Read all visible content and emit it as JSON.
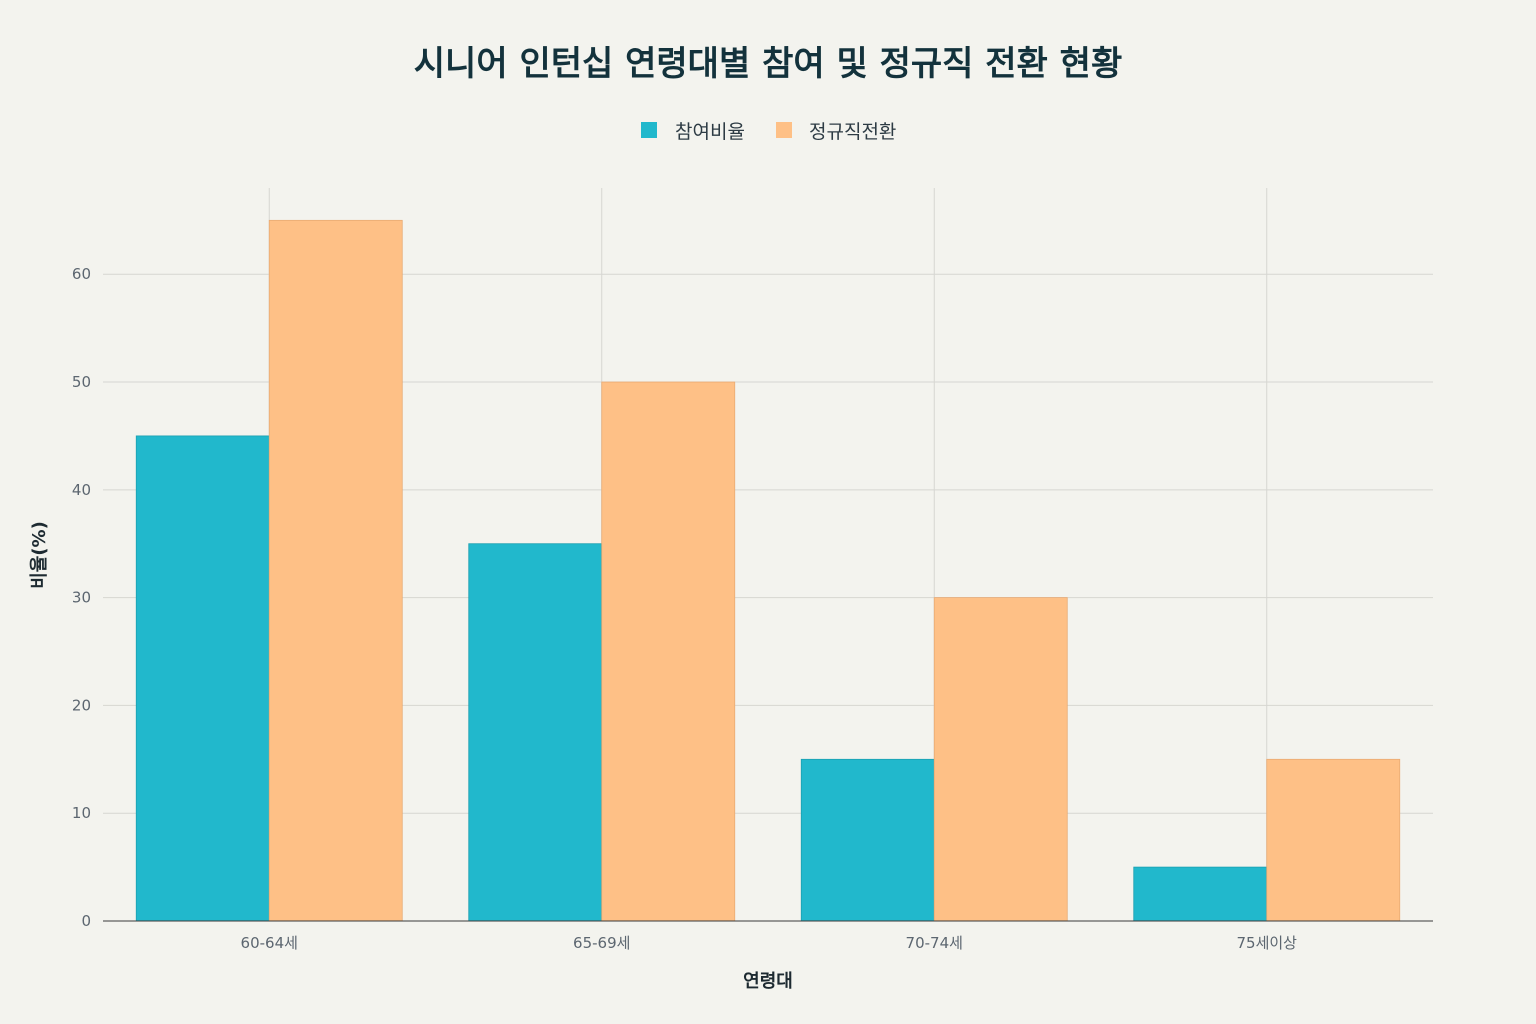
{
  "chart_data": {
    "type": "bar",
    "title": "시니어 인턴십 연령대별 참여 및 정규직 전환 현황",
    "xlabel": "연령대",
    "ylabel": "비율(%)",
    "categories": [
      "60-64세",
      "65-69세",
      "70-74세",
      "75세이상"
    ],
    "series": [
      {
        "name": "참여비율",
        "values": [
          45,
          35,
          15,
          5
        ],
        "color": "#21b8cc"
      },
      {
        "name": "정규직전환",
        "values": [
          65,
          50,
          30,
          15
        ],
        "color": "#fec086"
      }
    ],
    "ylim": [
      0,
      68
    ],
    "yticks": [
      0,
      10,
      20,
      30,
      40,
      50,
      60
    ],
    "grid": true,
    "legend_position": "top-center"
  }
}
